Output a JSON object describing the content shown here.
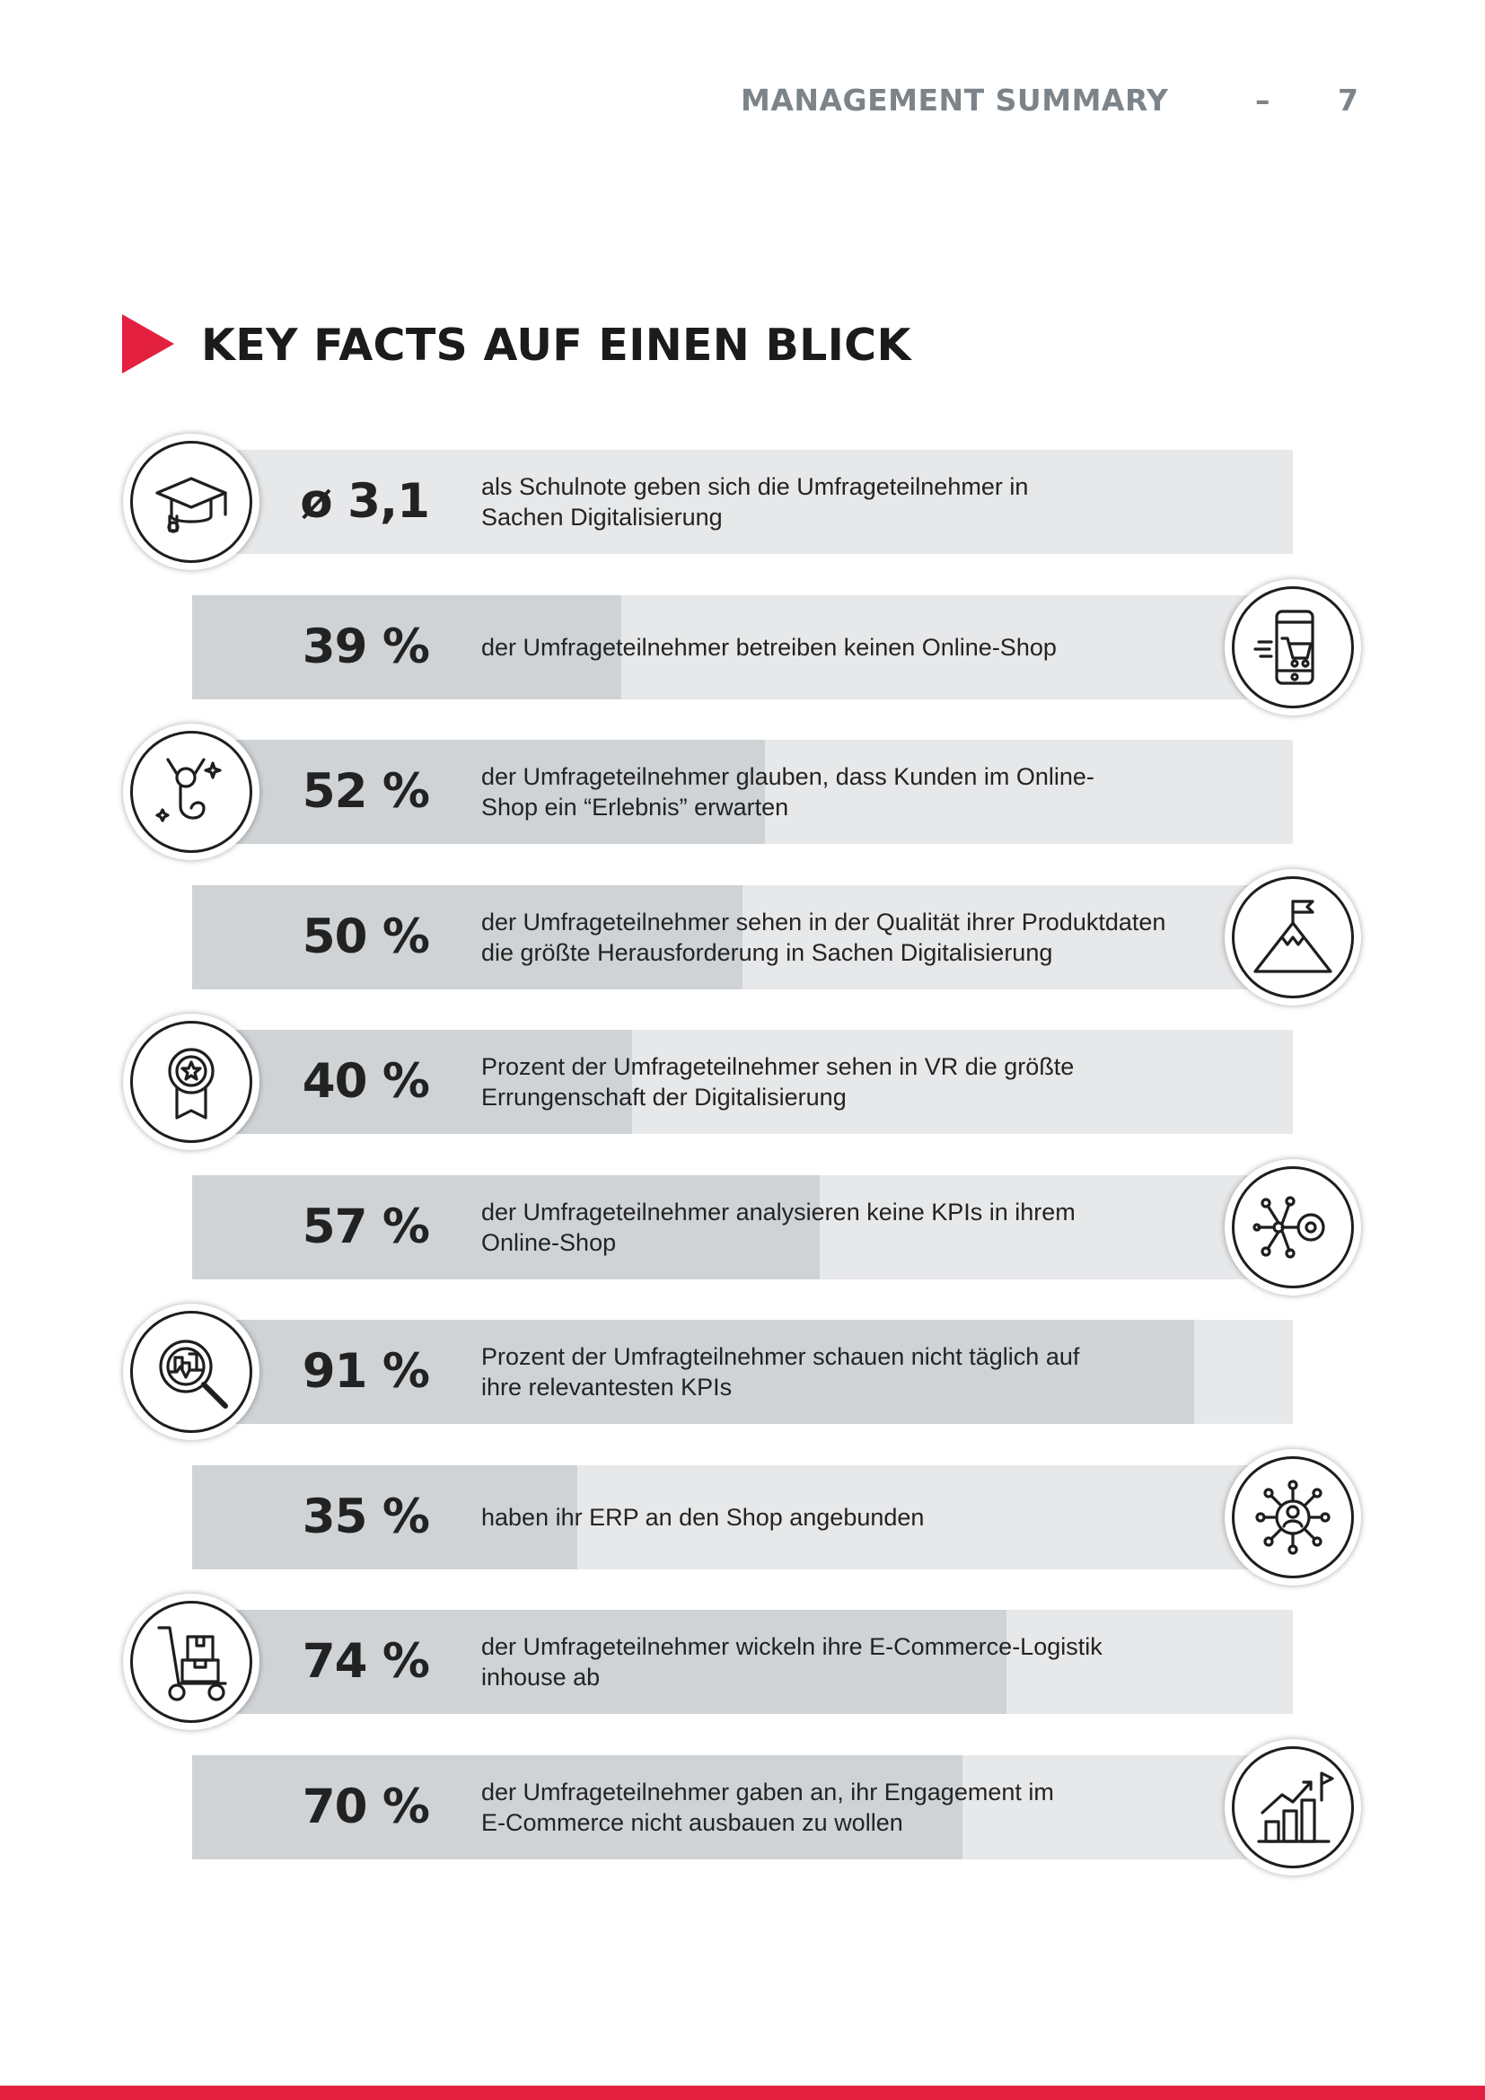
{
  "header": {
    "section": "MANAGEMENT SUMMARY",
    "dash": "–",
    "page_number": "7"
  },
  "heading": {
    "title": "KEY FACTS AUF EINEN BLICK",
    "accent_color": "#e3203f"
  },
  "facts": [
    {
      "value": "ø 3,1",
      "text_lines": [
        "als Schulnote geben sich die Umfrageteilnehmer in",
        "Sachen Digitalisierung"
      ],
      "share": null,
      "icon": "graduation-cap-icon"
    },
    {
      "value": "39 %",
      "text_lines": [
        "der Umfrageteilnehmer betreiben keinen Online-Shop"
      ],
      "share": 0.39,
      "icon": "mobile-shop-cart-icon"
    },
    {
      "value": "52 %",
      "text_lines": [
        "der Umfrageteilnehmer glauben, dass Kunden im Online-",
        "Shop ein “Erlebnis” erwarten"
      ],
      "share": 0.52,
      "icon": "excited-customer-icon"
    },
    {
      "value": "50 %",
      "text_lines": [
        "der Umfrageteilnehmer sehen in der Qualität ihrer Produktdaten",
        "die größte Herausforderung in Sachen Digitalisierung"
      ],
      "share": 0.5,
      "icon": "mountain-flag-icon"
    },
    {
      "value": "40 %",
      "text_lines": [
        "Prozent der Umfrageteilnehmer sehen in VR die größte",
        "Errungenschaft der Digitalisierung"
      ],
      "share": 0.4,
      "icon": "award-medal-icon"
    },
    {
      "value": "57 %",
      "text_lines": [
        "der Umfrageteilnehmer analysieren keine KPIs in ihrem",
        "Online-Shop"
      ],
      "share": 0.57,
      "icon": "network-key-icon"
    },
    {
      "value": "91 %",
      "text_lines": [
        "Prozent der Umfragteilnehmer schauen nicht täglich auf",
        "ihre relevantesten KPIs"
      ],
      "share": 0.91,
      "icon": "analytics-magnifier-icon"
    },
    {
      "value": "35 %",
      "text_lines": [
        "haben ihr ERP an den Shop angebunden"
      ],
      "share": 0.35,
      "icon": "connected-user-network-icon"
    },
    {
      "value": "74 %",
      "text_lines": [
        "der Umfrageteilnehmer wickeln ihre E-Commerce-Logistik",
        "inhouse ab"
      ],
      "share": 0.74,
      "icon": "hand-truck-boxes-icon"
    },
    {
      "value": "70 %",
      "text_lines": [
        "der Umfrageteilnehmer gaben an, ihr Engagement im",
        "E-Commerce nicht ausbauen zu wollen"
      ],
      "share": 0.7,
      "icon": "growth-chart-flag-icon"
    }
  ],
  "colors": {
    "accent": "#e3203f",
    "bar_track": "#e6e8ea",
    "bar_fill": "#d0d3d6",
    "header_gray": "#7d8489"
  }
}
